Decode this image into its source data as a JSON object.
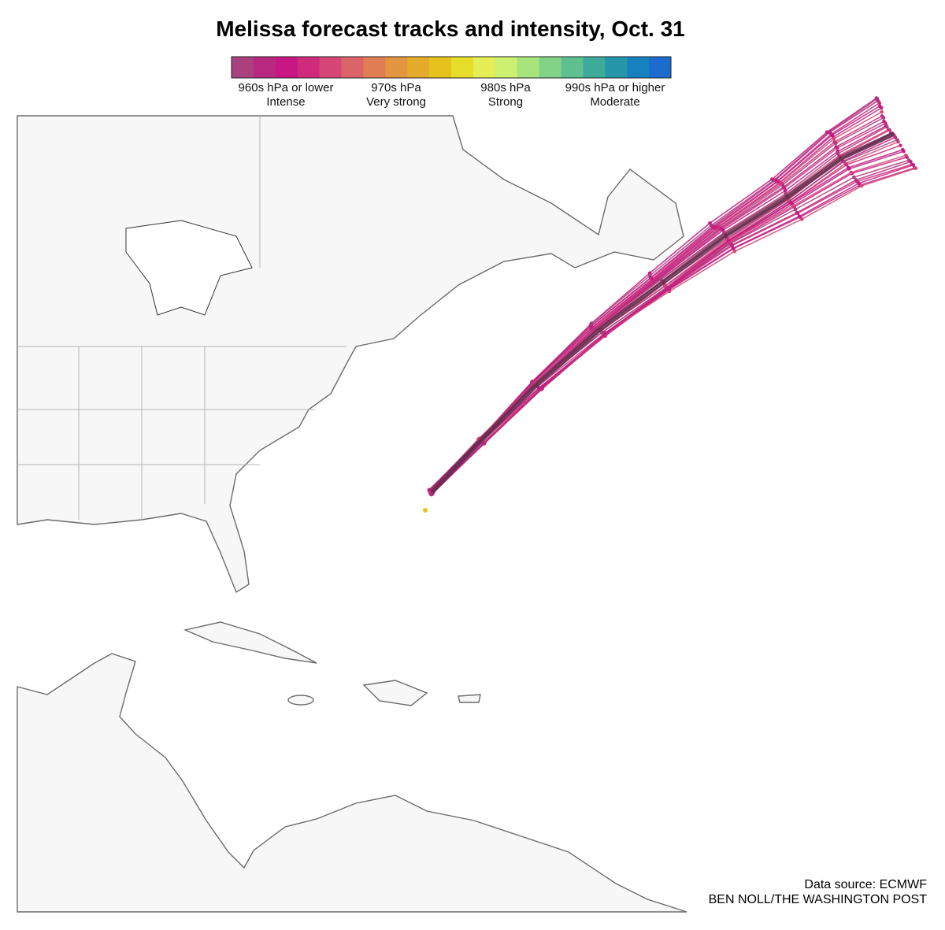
{
  "header": {
    "title": "Melissa forecast tracks and intensity, Oct. 31"
  },
  "legend": {
    "colors": [
      "#a8417e",
      "#b8287f",
      "#c81782",
      "#cf2a7c",
      "#d64778",
      "#db6468",
      "#df7e55",
      "#e3963f",
      "#e5ab2b",
      "#e6c31c",
      "#e6dc2a",
      "#e5ee55",
      "#ccf06f",
      "#a8e47c",
      "#82d387",
      "#5ec08f",
      "#3eab9a",
      "#2697aa",
      "#1781bf",
      "#1b6ccd"
    ],
    "labels": [
      {
        "pressure": "960s hPa or lower",
        "category": "Intense"
      },
      {
        "pressure": "970s hPa",
        "category": "Very strong"
      },
      {
        "pressure": "980s hPa",
        "category": "Strong"
      },
      {
        "pressure": "990s hPa or higher",
        "category": "Moderate"
      }
    ]
  },
  "footer": {
    "source": "Data source: ECMWF",
    "credit": "BEN NOLL/THE WASHINGTON POST"
  }
}
